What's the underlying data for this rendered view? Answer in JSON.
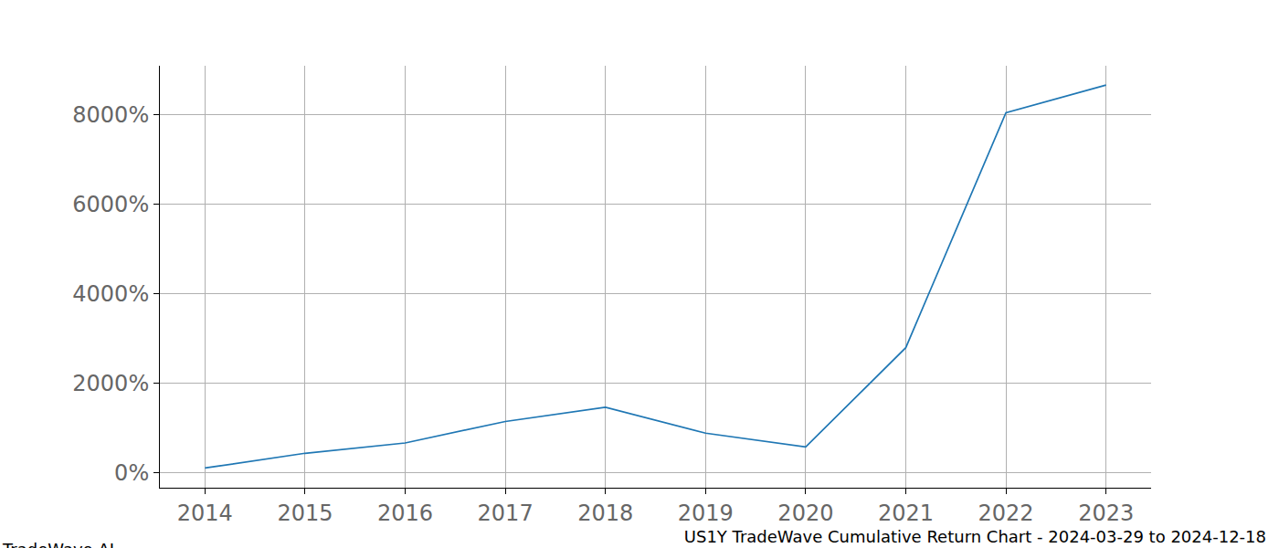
{
  "chart_data": {
    "type": "line",
    "title": "US1Y TradeWave Cumulative Return Chart - 2024-03-29 to 2024-12-18",
    "annotations": [
      "TradeWave.AI"
    ],
    "x": [
      2014,
      2015,
      2016,
      2017,
      2018,
      2019,
      2020,
      2021,
      2022,
      2023
    ],
    "values": [
      110,
      440,
      670,
      1150,
      1470,
      890,
      580,
      2800,
      8050,
      8670
    ],
    "color": "#1f77b4",
    "xlim": [
      2013.55,
      2023.45
    ],
    "xticks": [
      2014,
      2015,
      2016,
      2017,
      2018,
      2019,
      2020,
      2021,
      2022,
      2023
    ],
    "ylim": [
      -330,
      9100
    ],
    "yticks": [
      {
        "value": 0,
        "label": "0%"
      },
      {
        "value": 2000,
        "label": "2000%"
      },
      {
        "value": 4000,
        "label": "4000%"
      },
      {
        "value": 6000,
        "label": "6000%"
      },
      {
        "value": 8000,
        "label": "8000%"
      }
    ],
    "grid": true
  }
}
